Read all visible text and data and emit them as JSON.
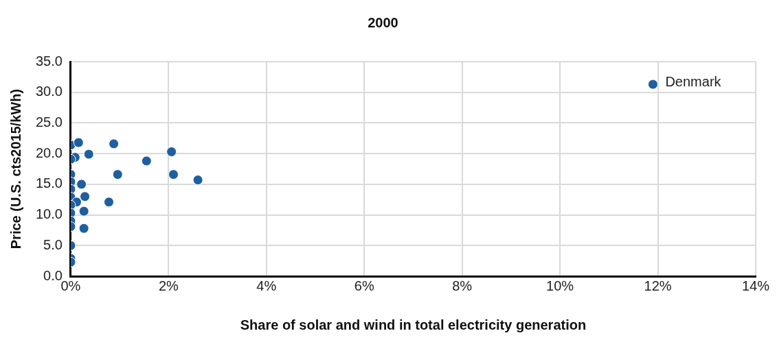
{
  "chart_data": {
    "type": "scatter",
    "title": "2000",
    "xlabel": "Share of solar and wind in total electricity generation",
    "ylabel": "Price (U.S. cts2015/kWh)",
    "x": [
      0,
      0.16,
      0.88,
      2.06,
      0.37,
      0.09,
      0,
      1.55,
      0,
      0.96,
      2.1,
      2.6,
      0,
      0.22,
      0,
      0,
      0.29,
      0.12,
      0.78,
      0,
      0,
      0.27,
      0,
      0,
      0.27,
      0,
      0,
      0,
      11.9
    ],
    "series": [
      {
        "color": "#1f5fa0",
        "values": [
          21.4,
          21.8,
          21.6,
          20.3,
          19.9,
          19.4,
          19.1,
          18.8,
          16.6,
          16.6,
          16.6,
          15.7,
          15.4,
          15.0,
          14.2,
          12.9,
          13.0,
          12.1,
          12.1,
          11.6,
          10.3,
          10.6,
          9.0,
          8.1,
          7.8,
          5.0,
          2.9,
          2.3,
          31.3
        ]
      }
    ],
    "xlim": [
      0,
      14
    ],
    "xticks": [
      {
        "value": 0,
        "label": "0%"
      },
      {
        "value": 2,
        "label": "2%"
      },
      {
        "value": 4,
        "label": "4%"
      },
      {
        "value": 6,
        "label": "6%"
      },
      {
        "value": 8,
        "label": "8%"
      },
      {
        "value": 10,
        "label": "10%"
      },
      {
        "value": 12,
        "label": "12%"
      },
      {
        "value": 14,
        "label": "14%"
      }
    ],
    "ylim": [
      0,
      35
    ],
    "yticks": [
      {
        "value": 0,
        "label": "0.0"
      },
      {
        "value": 5,
        "label": "5.0"
      },
      {
        "value": 10,
        "label": "10.0"
      },
      {
        "value": 15,
        "label": "15.0"
      },
      {
        "value": 20,
        "label": "20.0"
      },
      {
        "value": 25,
        "label": "25.0"
      },
      {
        "value": 30,
        "label": "30.0"
      },
      {
        "value": 35,
        "label": "35.0"
      }
    ],
    "annotations": [
      {
        "text": "Denmark",
        "x": 11.9,
        "y": 31.3
      }
    ],
    "grid": true,
    "legend": false,
    "marker": "circle"
  }
}
